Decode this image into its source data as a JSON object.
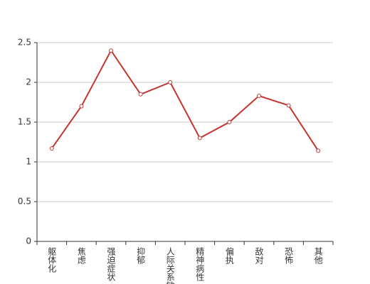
{
  "chart_data": {
    "type": "line",
    "categories": [
      "躯体化",
      "焦虑",
      "强迫症状",
      "抑郁",
      "人际关系敏感",
      "精神病性",
      "偏执",
      "敌对",
      "恐怖",
      "其他"
    ],
    "series": [
      {
        "color": "#c23531",
        "values": [
          1.17,
          1.7,
          2.4,
          1.85,
          2.0,
          1.3,
          1.5,
          1.83,
          1.71,
          1.14
        ]
      }
    ],
    "ylim": [
      0,
      2.5
    ],
    "yticks": [
      0,
      0.5,
      1,
      1.5,
      2,
      2.5
    ],
    "grid": true
  }
}
